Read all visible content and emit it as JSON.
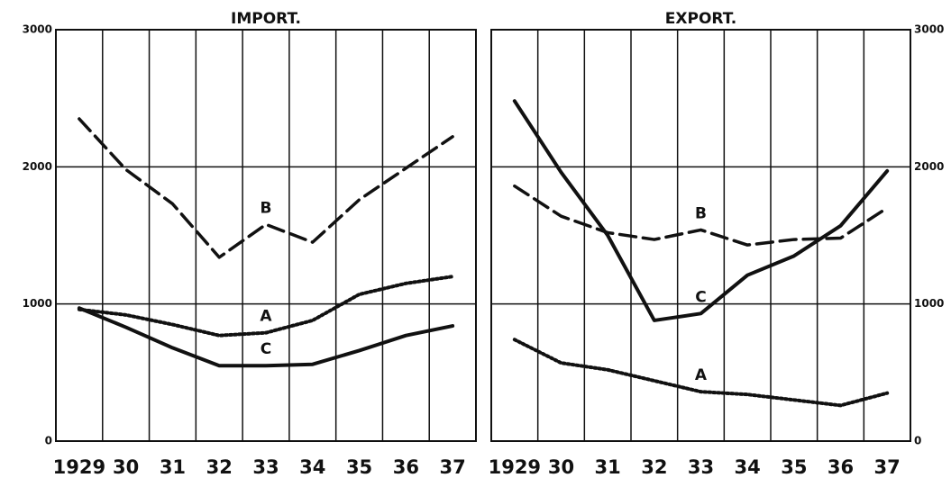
{
  "chart_data": [
    {
      "type": "line",
      "title": "IMPORT.",
      "y_axis_side": "left",
      "categories": [
        "1929",
        "30",
        "31",
        "32",
        "33",
        "34",
        "35",
        "36",
        "37"
      ],
      "ylim": [
        0,
        3000
      ],
      "yticks": [
        0,
        1000,
        2000,
        3000
      ],
      "grid": true,
      "series": [
        {
          "name": "B",
          "color": "#111111",
          "line_style": "dashed",
          "values": [
            2350,
            1980,
            1730,
            1340,
            1580,
            1450,
            1760,
            1990,
            2220
          ]
        },
        {
          "name": "A",
          "color": "#111111",
          "line_style": "dotted",
          "values": [
            960,
            920,
            850,
            770,
            790,
            880,
            1070,
            1150,
            1200
          ]
        },
        {
          "name": "C",
          "color": "#111111",
          "line_style": "solid",
          "values": [
            970,
            830,
            680,
            550,
            550,
            560,
            660,
            770,
            840
          ]
        }
      ]
    },
    {
      "type": "line",
      "title": "EXPORT.",
      "y_axis_side": "right",
      "categories": [
        "1929",
        "30",
        "31",
        "32",
        "33",
        "34",
        "35",
        "36",
        "37"
      ],
      "ylim": [
        0,
        3000
      ],
      "yticks": [
        0,
        1000,
        2000,
        3000
      ],
      "grid": true,
      "series": [
        {
          "name": "B",
          "color": "#111111",
          "line_style": "dashed",
          "values": [
            1860,
            1640,
            1520,
            1470,
            1540,
            1430,
            1470,
            1480,
            1700
          ]
        },
        {
          "name": "C",
          "color": "#111111",
          "line_style": "solid",
          "values": [
            2480,
            1960,
            1500,
            880,
            930,
            1210,
            1350,
            1570,
            1970
          ]
        },
        {
          "name": "A",
          "color": "#111111",
          "line_style": "dotted",
          "values": [
            740,
            570,
            520,
            440,
            360,
            340,
            300,
            260,
            350
          ]
        }
      ]
    }
  ]
}
